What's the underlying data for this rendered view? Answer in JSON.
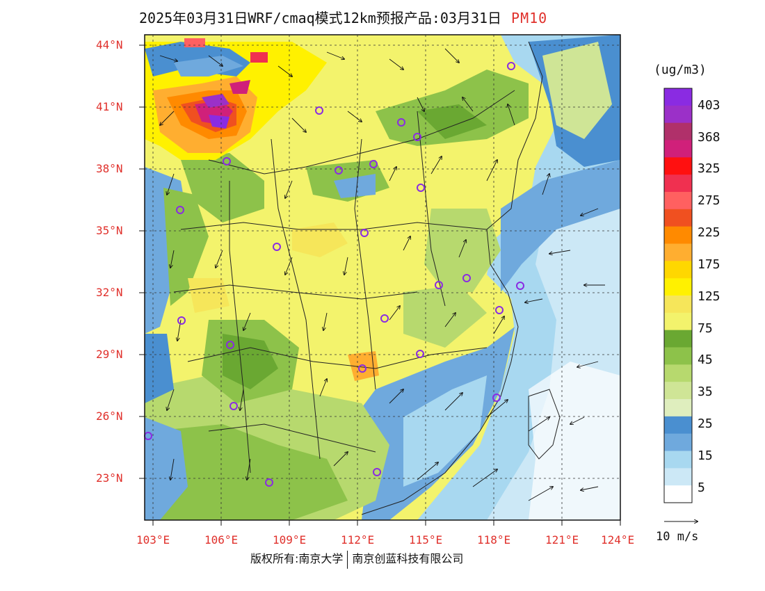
{
  "title": "2025年03月31日WRF/cmaq模式12km预报产品:03月31日",
  "pollutant": "PM10",
  "unit_label": "(ug/m3)",
  "latitude_labels": [
    "44°N",
    "41°N",
    "38°N",
    "35°N",
    "32°N",
    "29°N",
    "26°N",
    "23°N"
  ],
  "longitude_labels": [
    "103°E",
    "106°E",
    "109°E",
    "112°E",
    "115°E",
    "118°E",
    "121°E",
    "124°E"
  ],
  "colorbar": {
    "labels": [
      "403",
      "368",
      "325",
      "275",
      "225",
      "175",
      "125",
      "75",
      "45",
      "35",
      "25",
      "15",
      "5"
    ],
    "colors": [
      "#8a2be2",
      "#9b30c8",
      "#b0306a",
      "#d0207a",
      "#ff1010",
      "#f03050",
      "#ff6060",
      "#f05020",
      "#ff8a00",
      "#ffae30",
      "#ffd700",
      "#fff100",
      "#f6e65a",
      "#f3f36c",
      "#6aa832",
      "#8dc24a",
      "#b7d96e",
      "#cfe596",
      "#dfeebe",
      "#4a8fd0",
      "#6fa9dd",
      "#a8d8f0",
      "#cce8f6",
      "#ffffff"
    ]
  },
  "wind_scale": {
    "label": "10 m/s"
  },
  "footer": {
    "left": "版权所有:南京大学",
    "right": "南京创蓝科技有限公司"
  },
  "colors": {
    "accent_red": "#e0302b",
    "marker": "#8a2be2"
  }
}
